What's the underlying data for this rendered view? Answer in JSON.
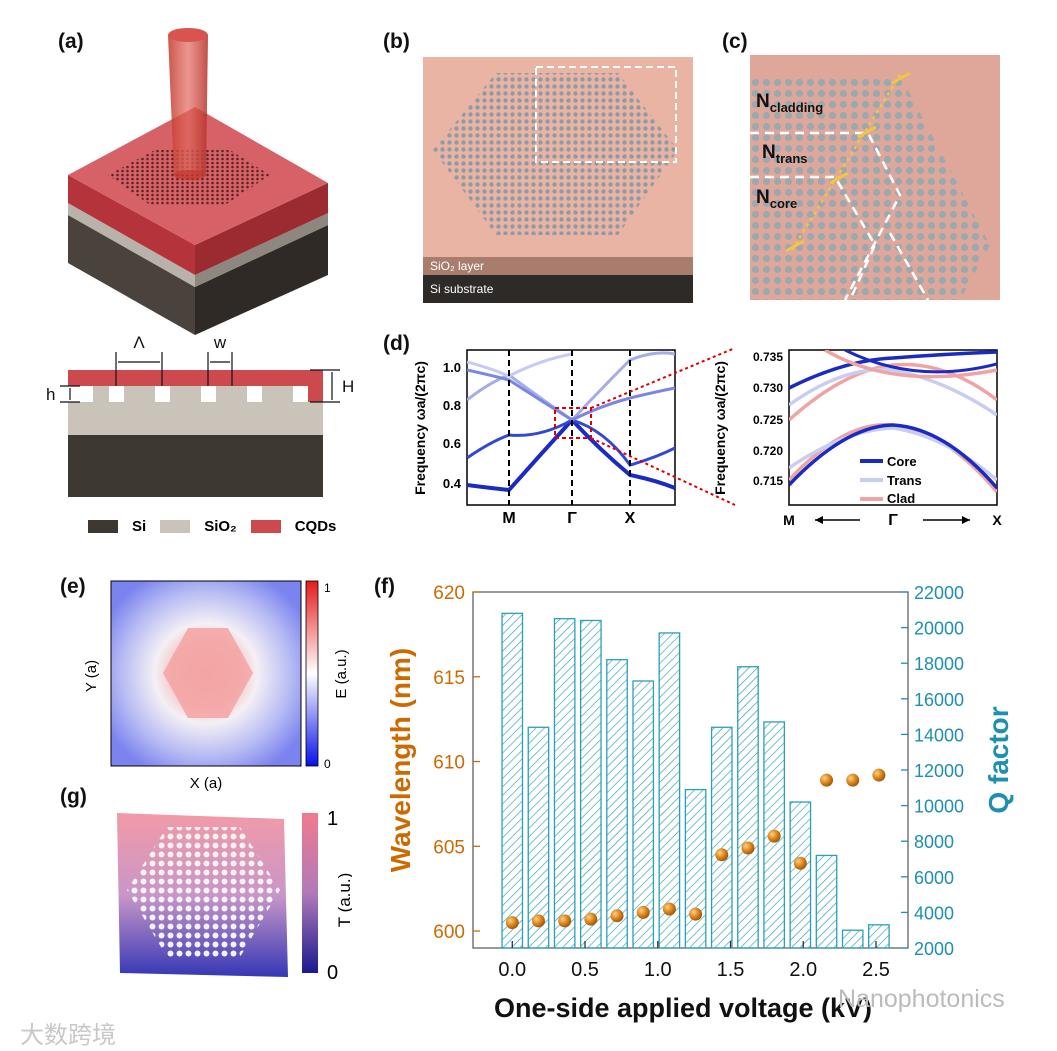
{
  "panels": {
    "a": {
      "label": "(a)",
      "lambda": "Λ",
      "w": "w",
      "h": "h",
      "H": "H",
      "legend": [
        {
          "name": "Si",
          "color": "#3e3832"
        },
        {
          "name": "SiO₂",
          "color": "#c9c3ba"
        },
        {
          "name": "CQDs",
          "color": "#cc4a4e"
        }
      ]
    },
    "b": {
      "label": "(b)",
      "sio2": "SiO₂ layer",
      "si": "Si substrate"
    },
    "c": {
      "label": "(c)",
      "n_cladding": "N",
      "n_cladding_sub": "cladding",
      "n_trans": "N",
      "n_trans_sub": "trans",
      "n_core": "N",
      "n_core_sub": "core"
    },
    "d": {
      "label": "(d)",
      "ylabel_left": "Frequency ωa/(2πc)",
      "ylabel_right": "Frequency ωa/(2πc)",
      "xticks": [
        "M",
        "Γ",
        "X"
      ],
      "yticks_left": [
        "0.4",
        "0.6",
        "0.8",
        "1.0"
      ],
      "yticks_right": [
        "0.715",
        "0.720",
        "0.725",
        "0.730",
        "0.735"
      ],
      "legend": [
        {
          "name": "Core",
          "color": "#1a2bc4"
        },
        {
          "name": "Trans",
          "color": "#c9cdf0"
        },
        {
          "name": "Clad",
          "color": "#f0a3a3"
        }
      ]
    },
    "e": {
      "label": "(e)",
      "xlabel": "X (a)",
      "ylabel": "Y (a)",
      "cbar_label": "E (a.u.)",
      "cbar_max": "1",
      "cbar_min": "0"
    },
    "g": {
      "label": "(g)",
      "cbar_label": "T (a.u.)",
      "cbar_max": "1",
      "cbar_min": "0"
    },
    "f": {
      "label": "(f)"
    }
  },
  "chart_data": {
    "type": "bar",
    "title": "",
    "xlabel": "One-side applied voltage (kV)",
    "ylabel_left": "Wavelength (nm)",
    "ylabel_right": "Q factor",
    "xticks": [
      "0.0",
      "0.5",
      "1.0",
      "1.5",
      "2.0",
      "2.5"
    ],
    "xlim": [
      -0.27,
      2.72
    ],
    "ylim_left": [
      599,
      620
    ],
    "ylim_right": [
      2000,
      22000
    ],
    "yticks_left": [
      "600",
      "605",
      "610",
      "615",
      "620"
    ],
    "yticks_right": [
      "2000",
      "4000",
      "6000",
      "8000",
      "10000",
      "12000",
      "14000",
      "16000",
      "18000",
      "20000",
      "22000"
    ],
    "x": [
      0.0,
      0.18,
      0.36,
      0.54,
      0.72,
      0.9,
      1.08,
      1.26,
      1.44,
      1.62,
      1.8,
      1.98,
      2.16,
      2.34,
      2.52
    ],
    "series": [
      {
        "name": "Q factor",
        "axis": "right",
        "kind": "bar",
        "values": [
          20800,
          14400,
          20500,
          20400,
          18200,
          17000,
          19700,
          10900,
          14400,
          17800,
          14700,
          10200,
          7200,
          3000,
          3300
        ]
      },
      {
        "name": "Wavelength",
        "axis": "left",
        "kind": "scatter",
        "values": [
          600.5,
          600.6,
          600.6,
          600.7,
          600.9,
          601.1,
          601.3,
          601.0,
          604.5,
          604.9,
          605.6,
          604.0,
          608.9,
          608.9,
          609.2
        ]
      }
    ],
    "colors": {
      "bar": "#2a9fb8",
      "point": "#e08a1e",
      "left_axis": "#cc6a00",
      "right_axis": "#1e8fb0"
    }
  },
  "watermarks": {
    "left": "大数跨境",
    "right": "Nanophotonics"
  }
}
